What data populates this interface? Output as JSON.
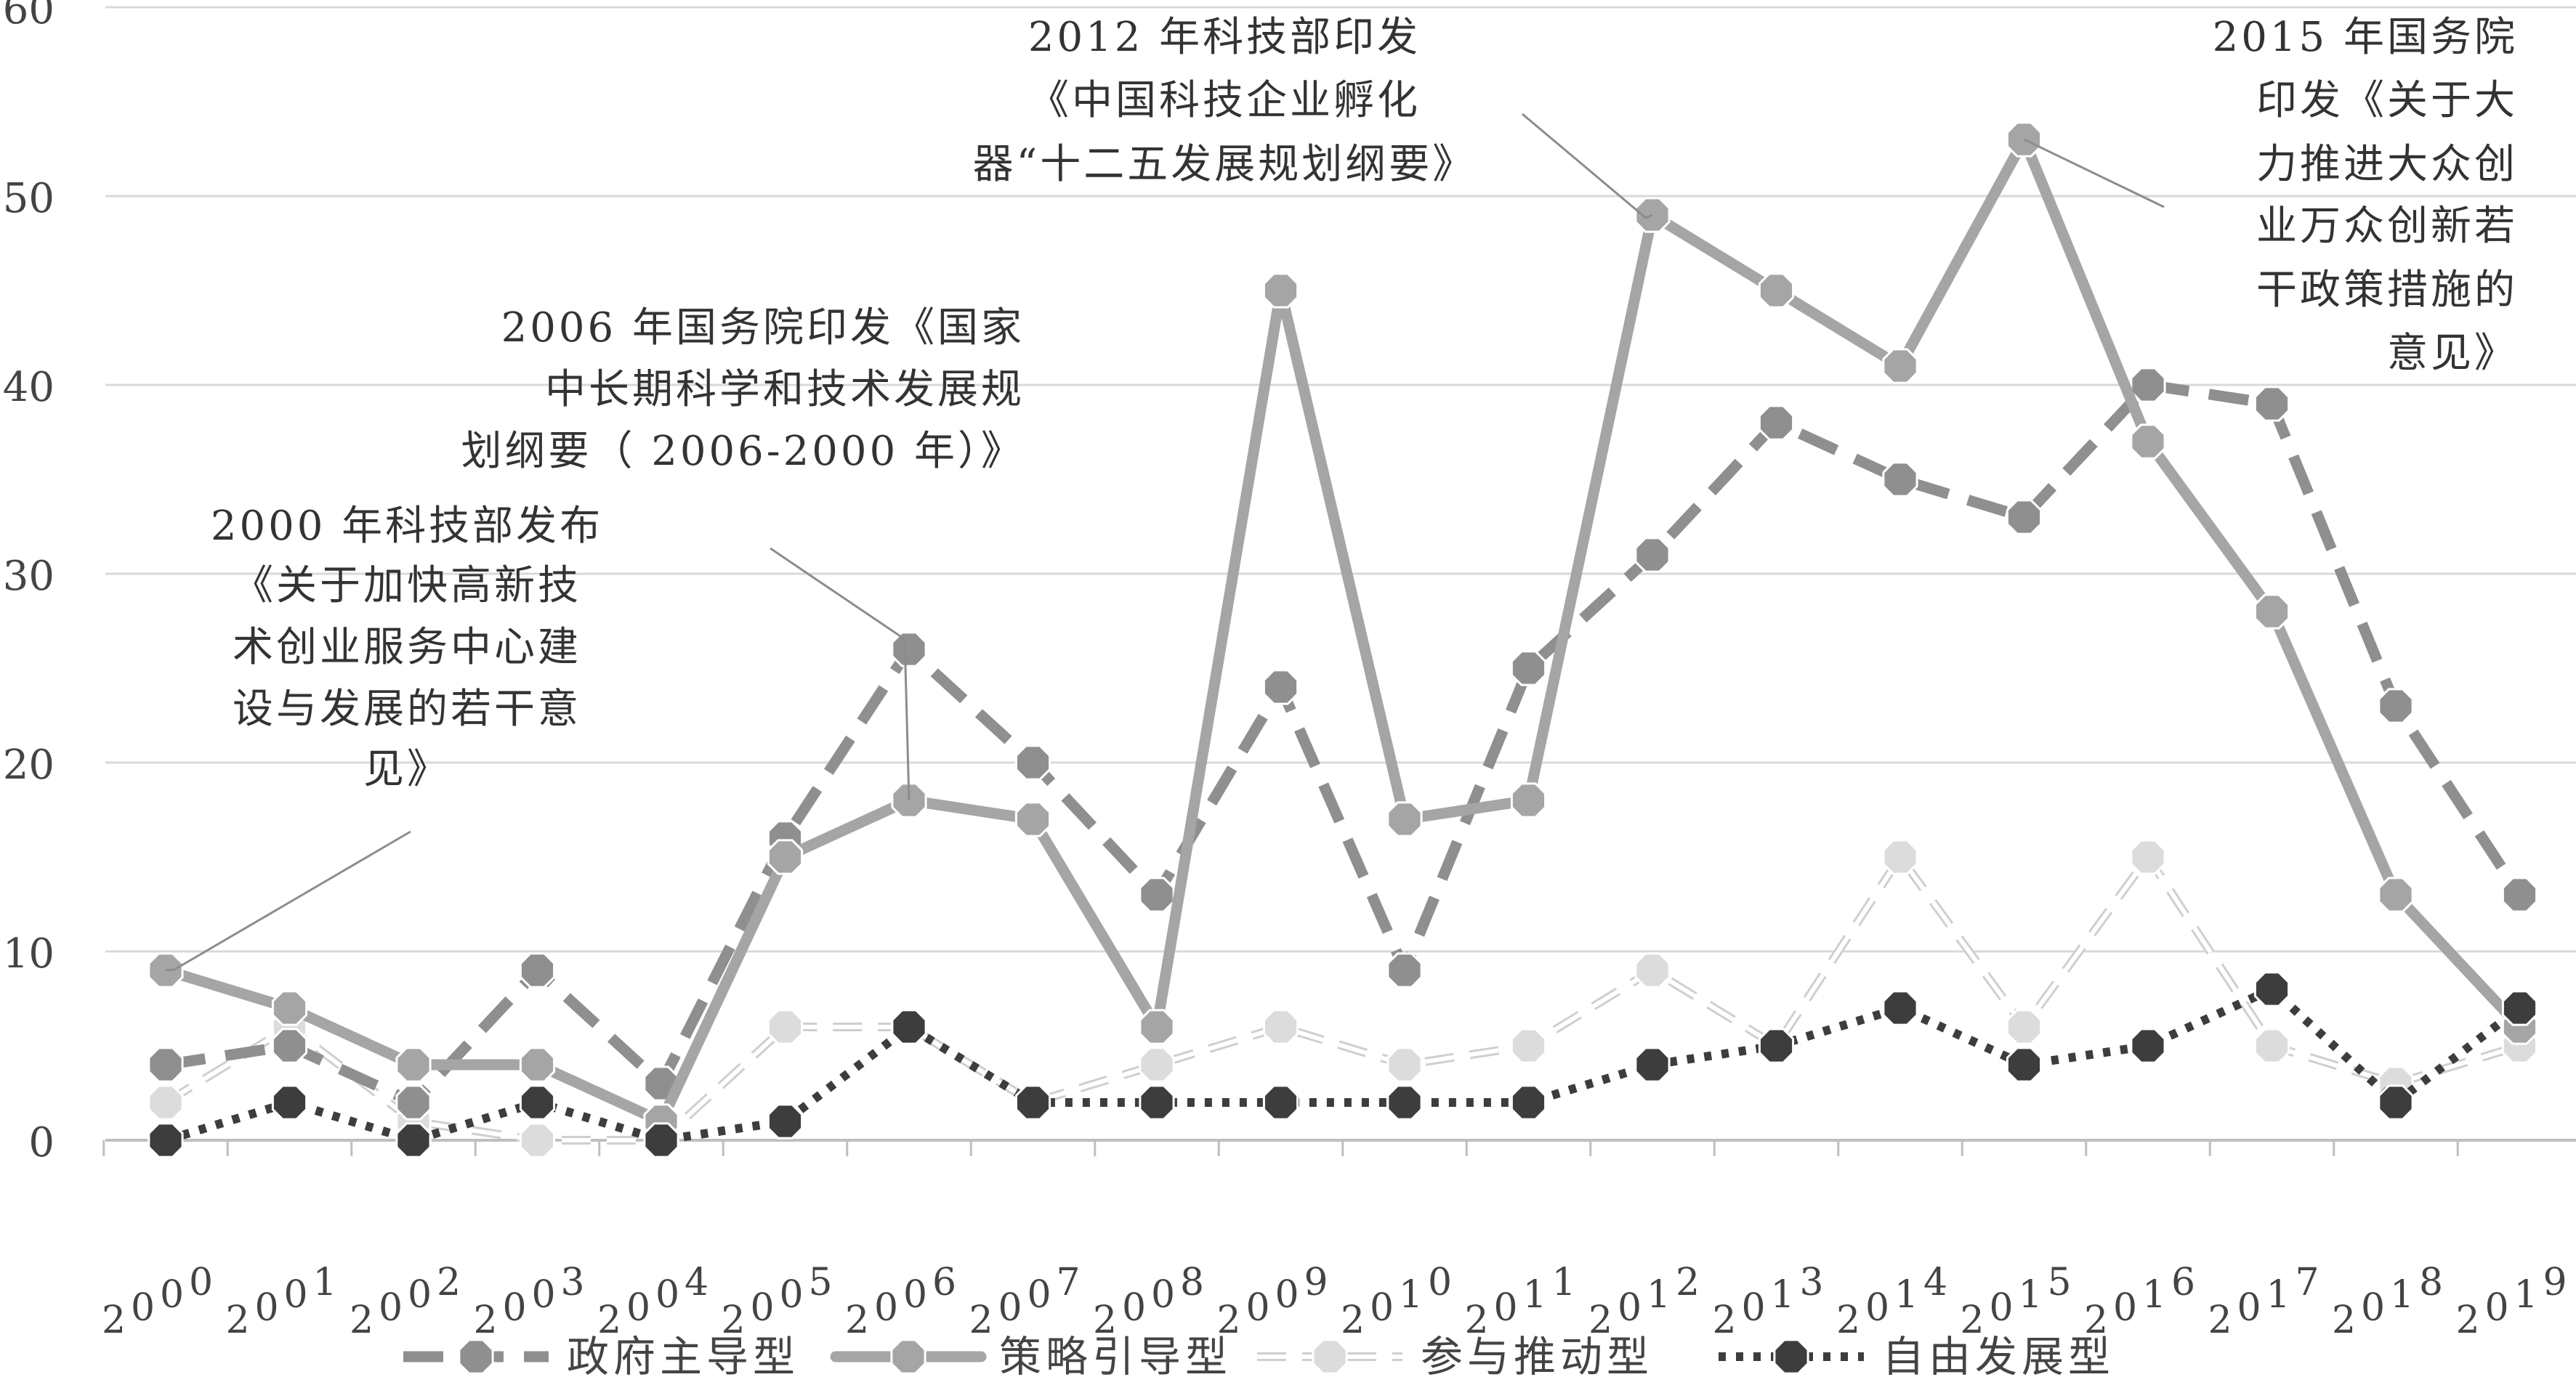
{
  "chart_data": {
    "type": "line",
    "title": "",
    "xlabel": "",
    "ylabel": "",
    "categories": [
      "2000",
      "2001",
      "2002",
      "2003",
      "2004",
      "2005",
      "2006",
      "2007",
      "2008",
      "2009",
      "2010",
      "2011",
      "2012",
      "2013",
      "2014",
      "2015",
      "2016",
      "2017",
      "2018",
      "2019"
    ],
    "ylim": [
      0,
      60
    ],
    "yticks": [
      "0",
      "10",
      "20",
      "30",
      "40",
      "50",
      "60"
    ],
    "grid": true,
    "legend_position": "bottom",
    "series": [
      {
        "name": "政府主导型",
        "color": "#8f8f8f",
        "style": "dashed-thick",
        "values": [
          4,
          5,
          2,
          9,
          3,
          16,
          26,
          20,
          13,
          24,
          9,
          25,
          31,
          38,
          35,
          33,
          40,
          39,
          23,
          13
        ]
      },
      {
        "name": "策略引导型",
        "color": "#a5a5a5",
        "style": "solid-thick",
        "values": [
          9,
          7,
          4,
          4,
          1,
          15,
          18,
          17,
          6,
          45,
          17,
          18,
          49,
          45,
          41,
          53,
          37,
          28,
          13,
          6
        ]
      },
      {
        "name": "参与推动型",
        "color": "#cfcfcf",
        "style": "dashed-outline",
        "values": [
          2,
          6,
          1,
          0,
          0,
          6,
          6,
          2,
          4,
          6,
          4,
          5,
          9,
          5,
          15,
          6,
          15,
          5,
          3,
          5
        ]
      },
      {
        "name": "自由发展型",
        "color": "#3d3d3d",
        "style": "dotted",
        "values": [
          0,
          2,
          0,
          2,
          0,
          1,
          6,
          2,
          2,
          2,
          2,
          2,
          4,
          5,
          7,
          4,
          5,
          8,
          2,
          7
        ]
      }
    ],
    "annotations": [
      {
        "point": "2000",
        "lines": [
          "2000 年科技部发布",
          "《关于加快高新技",
          "术创业服务中心建",
          "设与发展的若干意",
          "见》"
        ]
      },
      {
        "point": "2006",
        "lines": [
          "2006 年国务院印发《国家",
          "中长期科学和技术发展规",
          "划纲要（ 2006-2000 年）》"
        ]
      },
      {
        "point": "2012",
        "lines": [
          "2012 年科技部印发",
          "《中国科技企业孵化",
          "器“十二五发展规划纲要》"
        ]
      },
      {
        "point": "2015",
        "lines": [
          "2015 年国务院",
          "印发《关于大",
          "力推进大众创",
          "业万众创新若",
          "干政策措施的",
          "意见》"
        ]
      }
    ]
  }
}
